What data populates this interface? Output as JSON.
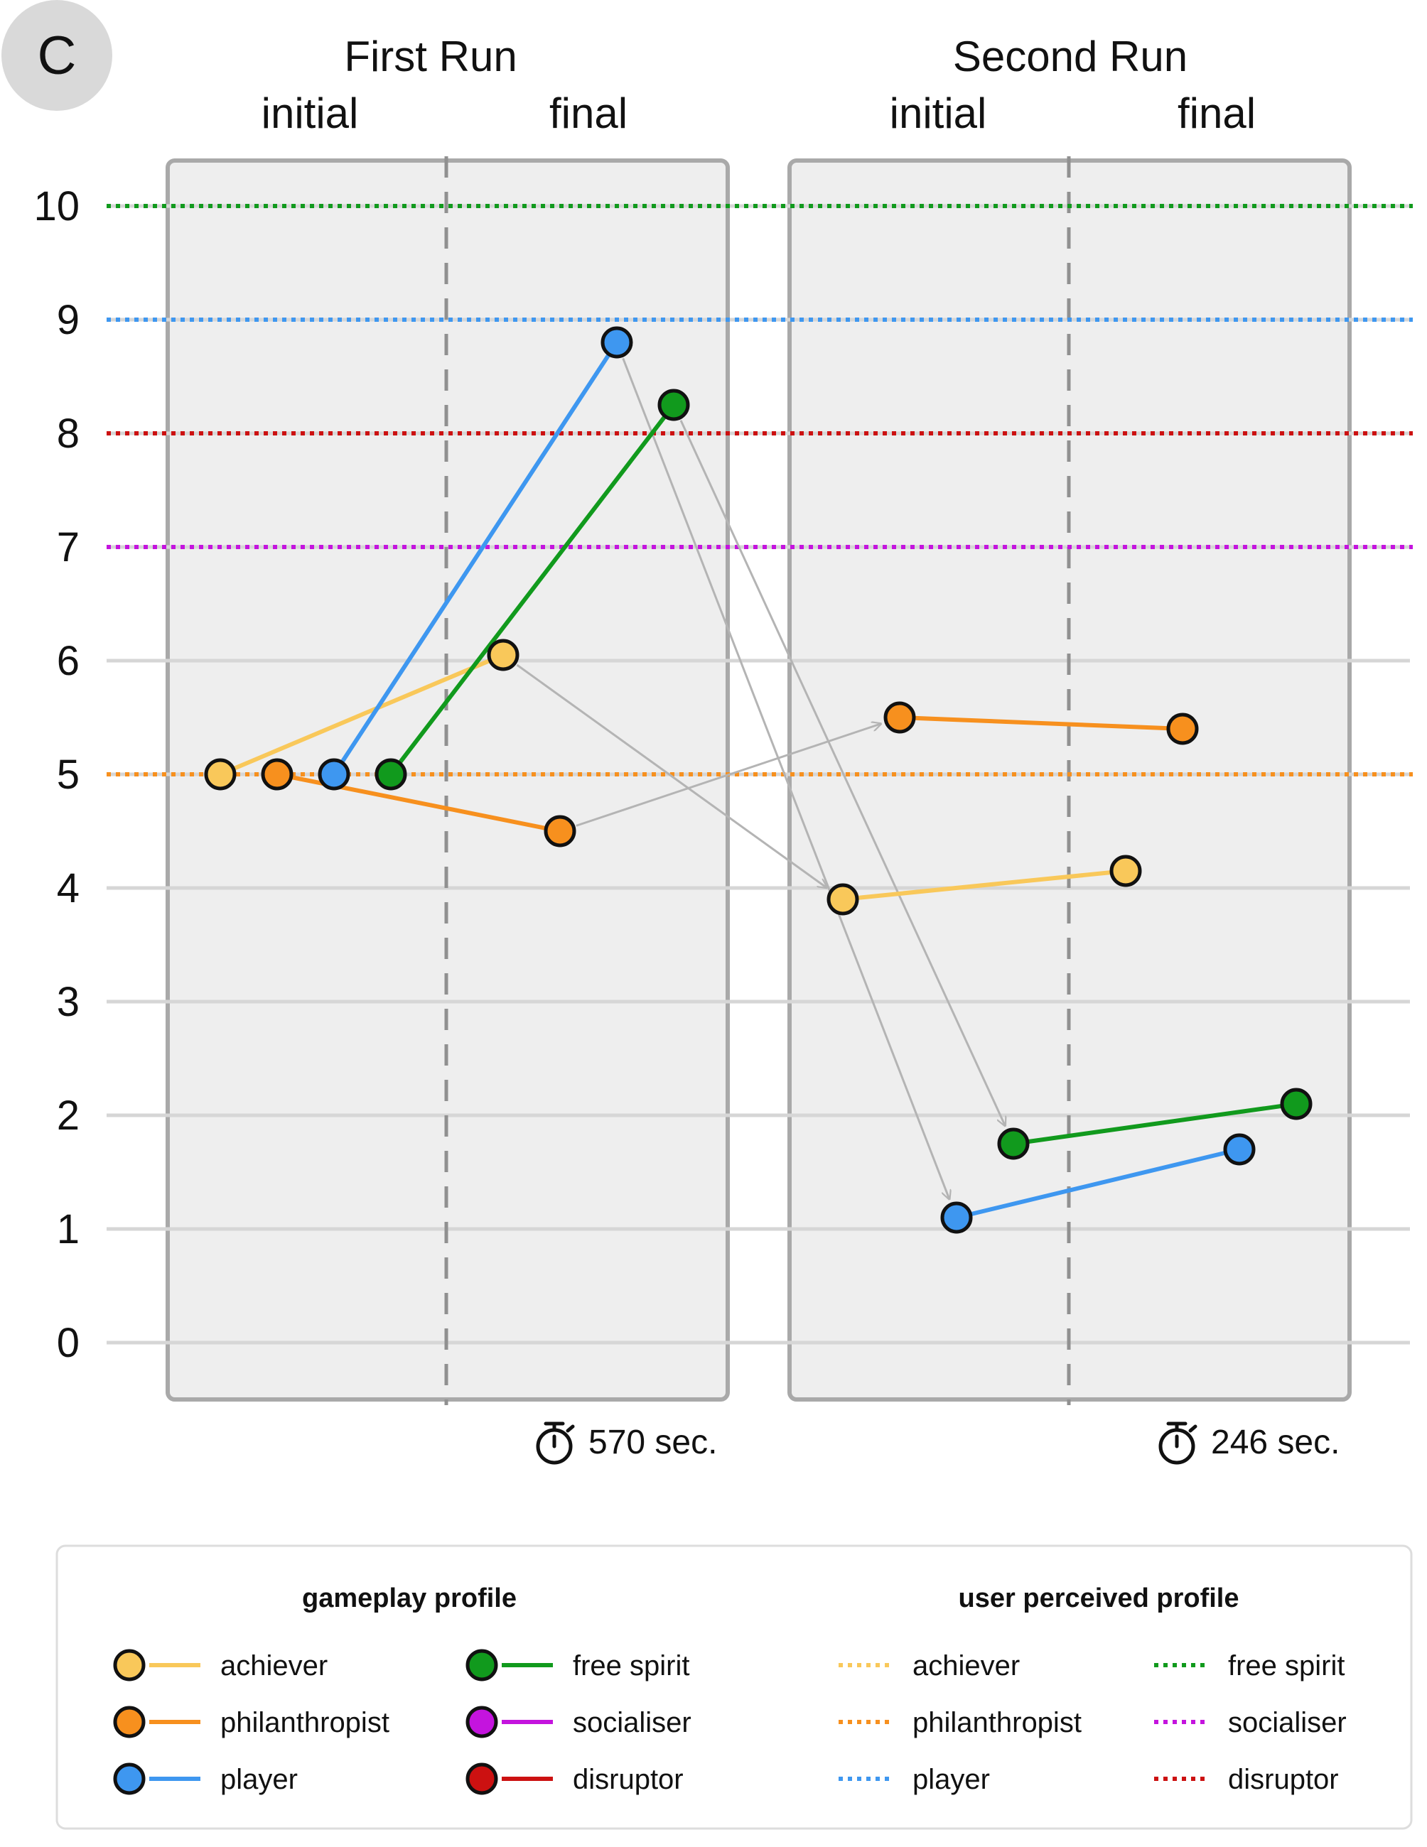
{
  "panel_letter": "C",
  "chart_data": {
    "type": "line",
    "y_range": [
      0,
      10
    ],
    "y_ticks": [
      "0",
      "1",
      "2",
      "3",
      "4",
      "5",
      "6",
      "7",
      "8",
      "9",
      "10"
    ],
    "runs": [
      {
        "title": "First Run",
        "initial_label": "initial",
        "final_label": "final",
        "duration": "570 sec."
      },
      {
        "title": "Second Run",
        "initial_label": "initial",
        "final_label": "final",
        "duration": "246 sec."
      }
    ],
    "series": [
      {
        "name": "achiever",
        "color": "#f9c85a",
        "run1": [
          5.0,
          6.05
        ],
        "run2": [
          3.9,
          4.15
        ],
        "perceived": 7.0
      },
      {
        "name": "philanthropist",
        "color": "#f7901e",
        "run1": [
          5.0,
          4.5
        ],
        "run2": [
          5.5,
          5.4
        ],
        "perceived": 5.0
      },
      {
        "name": "player",
        "color": "#3e97f0",
        "run1": [
          5.0,
          8.8
        ],
        "run2": [
          1.1,
          1.7
        ],
        "perceived": 9.0
      },
      {
        "name": "free spirit",
        "color": "#119a1d",
        "run1": [
          5.0,
          8.25
        ],
        "run2": [
          1.75,
          2.1
        ],
        "perceived": 10.0
      },
      {
        "name": "socialiser",
        "color": "#c414de",
        "run1": null,
        "run2": null,
        "perceived": 7.0
      },
      {
        "name": "disruptor",
        "color": "#cc1111",
        "run1": null,
        "run2": null,
        "perceived": 8.0
      }
    ],
    "legend": {
      "gameplay_title": "gameplay profile",
      "perceived_title": "user perceived profile",
      "items": [
        "achiever",
        "philanthropist",
        "player",
        "free spirit",
        "socialiser",
        "disruptor"
      ]
    }
  }
}
